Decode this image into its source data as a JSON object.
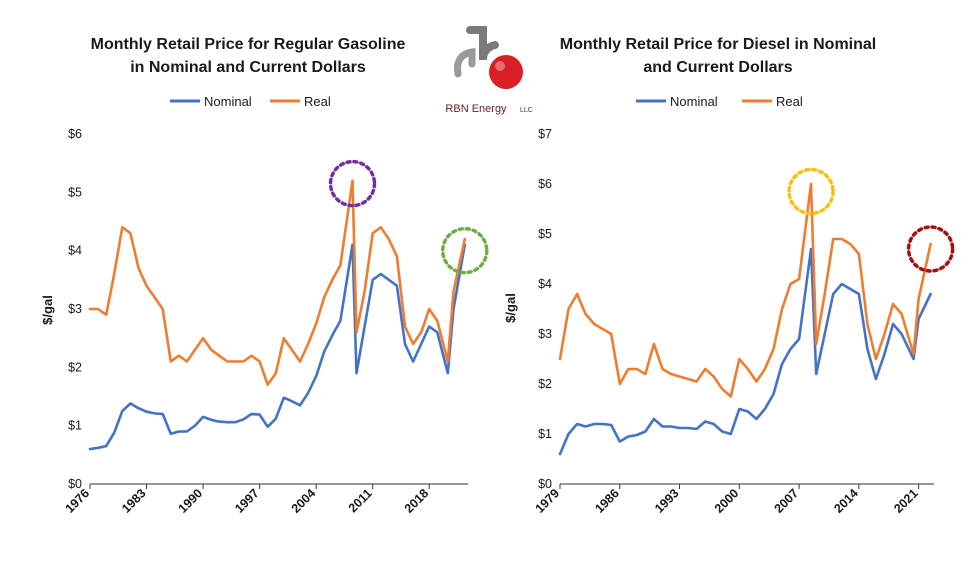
{
  "logo": {
    "text": "RBN Energy",
    "suffix": "LLC",
    "mark": "rb"
  },
  "colors": {
    "nominal": "#4472C4",
    "real": "#ED7D31",
    "axis": "#333333"
  },
  "chart_data": [
    {
      "type": "line",
      "title_lines": [
        "Monthly Retail Price for Regular Gasoline",
        "in Nominal and Current Dollars"
      ],
      "ylabel": "$/gal",
      "ylim": [
        0,
        6
      ],
      "yticks": [
        "$0",
        "$1",
        "$2",
        "$3",
        "$4",
        "$5",
        "$6"
      ],
      "xlim": [
        1976,
        2022.8
      ],
      "xtick_values": [
        1976,
        1983,
        1990,
        1997,
        2004,
        2011,
        2018
      ],
      "xtick_labels": [
        "1976",
        "1983",
        "1990",
        "1997",
        "2004",
        "2011",
        "2018"
      ],
      "legend": "top-center",
      "series": [
        {
          "name": "Nominal",
          "x": [
            1976,
            1977,
            1978,
            1979,
            1980,
            1981,
            1982,
            1983,
            1984,
            1985,
            1986,
            1987,
            1988,
            1989,
            1990,
            1991,
            1992,
            1993,
            1994,
            1995,
            1996,
            1997,
            1998,
            1999,
            2000,
            2001,
            2002,
            2003,
            2004,
            2005,
            2006,
            2007,
            2008.5,
            2009,
            2010,
            2011,
            2012,
            2013,
            2014,
            2015,
            2016,
            2017,
            2018,
            2019,
            2020.3,
            2021,
            2022.4
          ],
          "y": [
            0.6,
            0.62,
            0.65,
            0.88,
            1.25,
            1.38,
            1.3,
            1.24,
            1.21,
            1.2,
            0.86,
            0.9,
            0.9,
            1.0,
            1.15,
            1.1,
            1.07,
            1.06,
            1.06,
            1.11,
            1.2,
            1.19,
            0.98,
            1.12,
            1.48,
            1.42,
            1.35,
            1.56,
            1.85,
            2.27,
            2.55,
            2.8,
            4.1,
            1.9,
            2.7,
            3.5,
            3.6,
            3.5,
            3.4,
            2.4,
            2.1,
            2.4,
            2.7,
            2.6,
            1.9,
            3.0,
            4.1
          ]
        },
        {
          "name": "Real",
          "x": [
            1976,
            1977,
            1978,
            1979,
            1980,
            1981,
            1982,
            1983,
            1984,
            1985,
            1986,
            1987,
            1988,
            1989,
            1990,
            1991,
            1992,
            1993,
            1994,
            1995,
            1996,
            1997,
            1998,
            1999,
            2000,
            2001,
            2002,
            2003,
            2004,
            2005,
            2006,
            2007,
            2008.5,
            2009,
            2010,
            2011,
            2012,
            2013,
            2014,
            2015,
            2016,
            2017,
            2018,
            2019,
            2020.3,
            2021,
            2022.4
          ],
          "y": [
            3.0,
            3.0,
            2.9,
            3.6,
            4.4,
            4.3,
            3.7,
            3.4,
            3.2,
            3.0,
            2.1,
            2.2,
            2.1,
            2.3,
            2.5,
            2.3,
            2.2,
            2.1,
            2.1,
            2.1,
            2.2,
            2.1,
            1.7,
            1.9,
            2.5,
            2.3,
            2.1,
            2.4,
            2.75,
            3.2,
            3.5,
            3.75,
            5.2,
            2.6,
            3.3,
            4.3,
            4.4,
            4.2,
            3.9,
            2.7,
            2.4,
            2.6,
            3.0,
            2.8,
            2.1,
            3.3,
            4.2
          ]
        }
      ],
      "annotations": [
        {
          "shape": "dashed-circle",
          "x": 2008.5,
          "y": 5.15,
          "color": "#7030A0"
        },
        {
          "shape": "dashed-circle",
          "x": 2022.4,
          "y": 4.0,
          "color": "#70AD47"
        }
      ]
    },
    {
      "type": "line",
      "title_lines": [
        "Monthly Retail Price for Diesel in Nominal",
        "and Current Dollars"
      ],
      "ylabel": "$/gal",
      "ylim": [
        0,
        7
      ],
      "yticks": [
        "$0",
        "$1",
        "$2",
        "$3",
        "$4",
        "$5",
        "$6",
        "$7"
      ],
      "xlim": [
        1979,
        2022.8
      ],
      "xtick_values": [
        1979,
        1986,
        1993,
        2000,
        2007,
        2014,
        2021
      ],
      "xtick_labels": [
        "1979",
        "1986",
        "1993",
        "2000",
        "2007",
        "2014",
        "2021"
      ],
      "legend": "top-center",
      "series": [
        {
          "name": "Nominal",
          "x": [
            1979,
            1980,
            1981,
            1982,
            1983,
            1984,
            1985,
            1986,
            1987,
            1988,
            1989,
            1990,
            1991,
            1992,
            1993,
            1994,
            1995,
            1996,
            1997,
            1998,
            1999,
            2000,
            2001,
            2002,
            2003,
            2004,
            2005,
            2006,
            2007,
            2008.4,
            2009,
            2010,
            2011,
            2012,
            2013,
            2014,
            2015,
            2016,
            2017,
            2018,
            2019,
            2020.4,
            2021,
            2022.4
          ],
          "y": [
            0.6,
            1.0,
            1.2,
            1.15,
            1.2,
            1.2,
            1.18,
            0.85,
            0.95,
            0.98,
            1.05,
            1.3,
            1.15,
            1.15,
            1.12,
            1.12,
            1.1,
            1.25,
            1.2,
            1.05,
            1.0,
            1.5,
            1.45,
            1.3,
            1.5,
            1.8,
            2.4,
            2.7,
            2.9,
            4.7,
            2.2,
            3.0,
            3.8,
            4.0,
            3.9,
            3.8,
            2.7,
            2.1,
            2.6,
            3.2,
            3.0,
            2.5,
            3.3,
            3.8
          ]
        },
        {
          "name": "Real",
          "x": [
            1979,
            1980,
            1981,
            1982,
            1983,
            1984,
            1985,
            1986,
            1987,
            1988,
            1989,
            1990,
            1991,
            1992,
            1993,
            1994,
            1995,
            1996,
            1997,
            1998,
            1999,
            2000,
            2001,
            2002,
            2003,
            2004,
            2005,
            2006,
            2007,
            2008.4,
            2009,
            2010,
            2011,
            2012,
            2013,
            2014,
            2015,
            2016,
            2017,
            2018,
            2019,
            2020.4,
            2021,
            2022.4
          ],
          "y": [
            2.5,
            3.5,
            3.8,
            3.4,
            3.2,
            3.1,
            3.0,
            2.0,
            2.3,
            2.3,
            2.2,
            2.8,
            2.3,
            2.2,
            2.15,
            2.1,
            2.05,
            2.3,
            2.15,
            1.9,
            1.75,
            2.5,
            2.3,
            2.05,
            2.3,
            2.7,
            3.5,
            4.0,
            4.1,
            6.0,
            2.8,
            3.8,
            4.9,
            4.9,
            4.8,
            4.6,
            3.2,
            2.5,
            3.0,
            3.6,
            3.4,
            2.6,
            3.7,
            4.8
          ]
        }
      ],
      "annotations": [
        {
          "shape": "dashed-circle",
          "x": 2008.4,
          "y": 5.85,
          "color": "#F4C20D"
        },
        {
          "shape": "dashed-circle",
          "x": 2022.4,
          "y": 4.7,
          "color": "#A50F0F"
        }
      ]
    }
  ]
}
